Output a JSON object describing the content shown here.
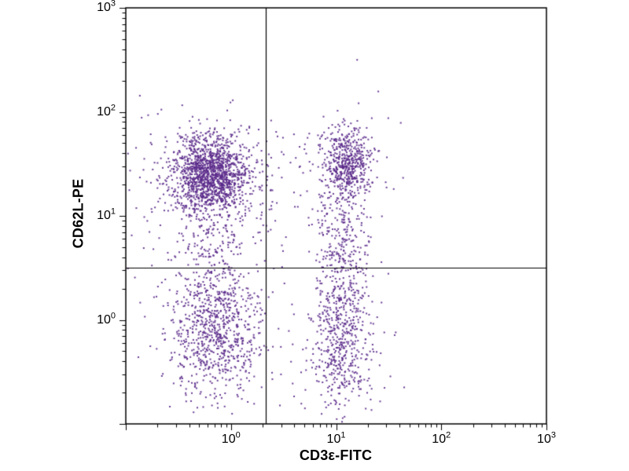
{
  "figure": {
    "background": "#ffffff",
    "dot_color": "#5b2a8b",
    "axis_color": "#000000"
  },
  "chart_data": {
    "type": "scatter",
    "title": "",
    "xlabel": "CD3ε-FITC",
    "ylabel": "CD62L-PE",
    "x_scale": "log",
    "y_scale": "log",
    "xlim_log10": [
      -1,
      3
    ],
    "ylim_log10": [
      -1,
      3
    ],
    "tick_base": "10",
    "x_ticks": [
      {
        "exp": "0",
        "log10": 0
      },
      {
        "exp": "1",
        "log10": 1
      },
      {
        "exp": "2",
        "log10": 2
      },
      {
        "exp": "3",
        "log10": 3
      }
    ],
    "y_ticks": [
      {
        "exp": "0",
        "log10": 0
      },
      {
        "exp": "1",
        "log10": 1
      },
      {
        "exp": "2",
        "log10": 2
      },
      {
        "exp": "3",
        "log10": 3
      }
    ],
    "quadrant_gate": {
      "x_log10": 0.33,
      "y_log10": 0.5
    },
    "seed": 42,
    "clusters": [
      {
        "name": "upper-left-core",
        "kind": "gauss",
        "n": 1200,
        "cx": -0.2,
        "cy": 1.4,
        "sx": 0.17,
        "sy": 0.18
      },
      {
        "name": "upper-left-halo",
        "kind": "gauss",
        "n": 350,
        "cx": -0.2,
        "cy": 1.35,
        "sx": 0.32,
        "sy": 0.3
      },
      {
        "name": "left-band",
        "kind": "gauss",
        "n": 220,
        "cx": -0.17,
        "cy": 0.7,
        "sx": 0.2,
        "sy": 0.35
      },
      {
        "name": "lower-left",
        "kind": "gauss",
        "n": 750,
        "cx": -0.15,
        "cy": -0.12,
        "sx": 0.22,
        "sy": 0.3
      },
      {
        "name": "upper-right-core",
        "kind": "gauss",
        "n": 430,
        "cx": 1.1,
        "cy": 1.5,
        "sx": 0.11,
        "sy": 0.16
      },
      {
        "name": "upper-right-halo",
        "kind": "gauss",
        "n": 140,
        "cx": 1.08,
        "cy": 1.45,
        "sx": 0.2,
        "sy": 0.28
      },
      {
        "name": "right-band",
        "kind": "gauss",
        "n": 300,
        "cx": 1.06,
        "cy": 0.55,
        "sx": 0.13,
        "sy": 0.42
      },
      {
        "name": "lower-right",
        "kind": "gauss",
        "n": 480,
        "cx": 1.05,
        "cy": -0.2,
        "sx": 0.15,
        "sy": 0.38
      },
      {
        "name": "background",
        "kind": "uniform",
        "n": 130,
        "x0": -1.0,
        "x1": 1.65,
        "y0": -1.0,
        "y1": 2.05
      }
    ],
    "outliers": [
      {
        "x_log10": 1.2,
        "y_log10": 2.5
      }
    ]
  }
}
